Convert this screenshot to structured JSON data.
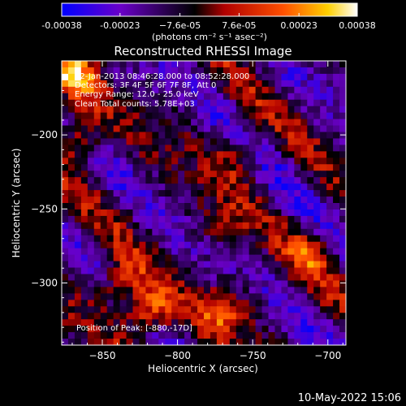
{
  "chart_data": {
    "type": "heatmap",
    "title": "Reconstructed RHESSI Image",
    "xlabel": "Heliocentric X (arcsec)",
    "ylabel": "Heliocentric Y (arcsec)",
    "xlim": [
      -877,
      -688
    ],
    "ylim": [
      -342,
      -150
    ],
    "x_ticks": [
      -850,
      -800,
      -750,
      -700
    ],
    "y_ticks": [
      -200,
      -250,
      -300
    ],
    "x_tick_labels": [
      "−850",
      "−800",
      "−750",
      "−700"
    ],
    "y_tick_labels": [
      "−200",
      "−250",
      "−300"
    ],
    "colorbar": {
      "range": [
        -0.00038,
        0.00038
      ],
      "ticks": [
        -0.00038,
        -0.00023,
        -7.6e-05,
        7.6e-05,
        0.00023,
        0.00038
      ],
      "tick_labels": [
        "-0.00038",
        "-0.00023",
        "−7.6e-05",
        "7.6e-05",
        "0.00023",
        "0.00038"
      ],
      "units": "(photons cm⁻² s⁻¹ asec⁻²)",
      "colors": [
        "#0000ff",
        "#6a00c8",
        "#000000",
        "#b00000",
        "#ff5000",
        "#ffd000",
        "#ffffff"
      ]
    },
    "annotations": [
      "12-Jan-2013 08:46:28.000 to 08:52:28.000",
      "Detectors: 3F 4F 5F 6F 7F 8F, Att 0",
      "Energy Range: 12.0 - 25.0 keV",
      "Clean    Total counts: 5.78E+03"
    ],
    "peak_label": "Position of Peak: [-880,-17D]",
    "bright_regions": [
      {
        "x": -870,
        "y": -160,
        "value": 0.00035
      },
      {
        "x": -865,
        "y": -200,
        "value": 0.00028
      },
      {
        "x": -820,
        "y": -320,
        "value": 0.00036
      },
      {
        "x": -840,
        "y": -300,
        "value": 0.00026
      },
      {
        "x": -770,
        "y": -320,
        "value": 0.00024
      },
      {
        "x": -710,
        "y": -280,
        "value": 0.00018
      },
      {
        "x": -760,
        "y": -215,
        "value": 0.00016
      },
      {
        "x": -770,
        "y": -260,
        "value": 0.00015
      }
    ]
  },
  "footer": {
    "timestamp": "10-May-2022 15:06"
  }
}
